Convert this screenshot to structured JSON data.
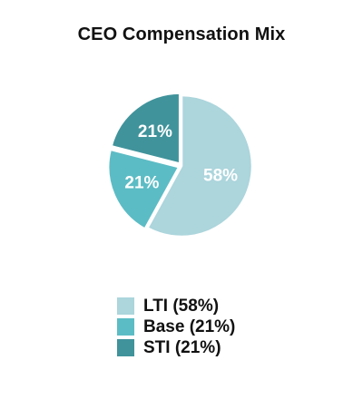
{
  "chart_data": {
    "type": "pie",
    "title": "CEO Compensation Mix",
    "start_angle_deg": 0,
    "direction": "clockwise",
    "slices": [
      {
        "label": "LTI",
        "value": 58,
        "value_label": "58%",
        "legend": "LTI (58%)",
        "color": "#acd5dc"
      },
      {
        "label": "Base",
        "value": 21,
        "value_label": "21%",
        "legend": "Base (21%)",
        "color": "#5cbcc5"
      },
      {
        "label": "STI",
        "value": 21,
        "value_label": "21%",
        "legend": "STI (21%)",
        "color": "#40939b"
      }
    ],
    "legend_position": "bottom"
  }
}
